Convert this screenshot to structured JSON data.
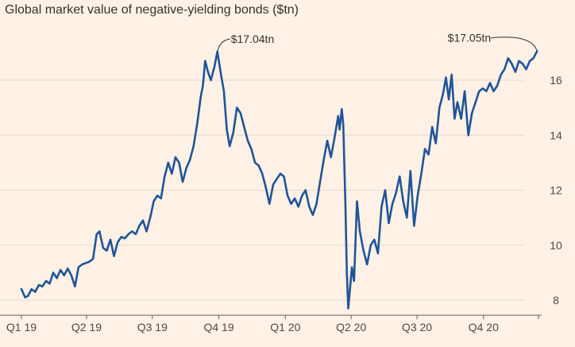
{
  "chart_data": {
    "type": "line",
    "title": "Global market value of negative-yielding bonds ($tn)",
    "xlabel": "",
    "ylabel": "",
    "x_range": [
      "2019-01-01",
      "2020-12-16"
    ],
    "ylim": [
      7.7,
      17.3
    ],
    "y_ticks": [
      8,
      10,
      12,
      14,
      16
    ],
    "y_tick_labels": [
      "8",
      "10",
      "12",
      "14",
      "16"
    ],
    "x_ticks": [
      {
        "date": "2019-01-01",
        "label": "Q1 19"
      },
      {
        "date": "2019-04-01",
        "label": "Q2 19"
      },
      {
        "date": "2019-07-01",
        "label": "Q3 19"
      },
      {
        "date": "2019-10-01",
        "label": "Q4 19"
      },
      {
        "date": "2020-01-01",
        "label": "Q1 20"
      },
      {
        "date": "2020-04-01",
        "label": "Q2 20"
      },
      {
        "date": "2020-07-01",
        "label": "Q3 20"
      },
      {
        "date": "2020-10-01",
        "label": "Q4 20"
      }
    ],
    "grid": true,
    "line_color": "#1f5499",
    "series": [
      {
        "values": [
          [
            "2019-01-01",
            8.4
          ],
          [
            "2019-01-06",
            8.1
          ],
          [
            "2019-01-10",
            8.15
          ],
          [
            "2019-01-15",
            8.4
          ],
          [
            "2019-01-20",
            8.3
          ],
          [
            "2019-01-25",
            8.55
          ],
          [
            "2019-01-30",
            8.5
          ],
          [
            "2019-02-04",
            8.7
          ],
          [
            "2019-02-09",
            8.6
          ],
          [
            "2019-02-14",
            9.0
          ],
          [
            "2019-02-19",
            8.8
          ],
          [
            "2019-02-24",
            9.1
          ],
          [
            "2019-03-01",
            8.9
          ],
          [
            "2019-03-06",
            9.15
          ],
          [
            "2019-03-11",
            8.9
          ],
          [
            "2019-03-16",
            8.5
          ],
          [
            "2019-03-21",
            9.2
          ],
          [
            "2019-03-26",
            9.3
          ],
          [
            "2019-03-31",
            9.35
          ],
          [
            "2019-04-05",
            9.4
          ],
          [
            "2019-04-10",
            9.5
          ],
          [
            "2019-04-15",
            10.4
          ],
          [
            "2019-04-19",
            10.5
          ],
          [
            "2019-04-24",
            9.9
          ],
          [
            "2019-04-29",
            9.8
          ],
          [
            "2019-05-04",
            10.2
          ],
          [
            "2019-05-09",
            9.6
          ],
          [
            "2019-05-14",
            10.1
          ],
          [
            "2019-05-19",
            10.3
          ],
          [
            "2019-05-24",
            10.25
          ],
          [
            "2019-05-29",
            10.4
          ],
          [
            "2019-06-03",
            10.5
          ],
          [
            "2019-06-08",
            10.4
          ],
          [
            "2019-06-13",
            10.7
          ],
          [
            "2019-06-18",
            10.9
          ],
          [
            "2019-06-23",
            10.5
          ],
          [
            "2019-06-28",
            11.0
          ],
          [
            "2019-07-03",
            11.6
          ],
          [
            "2019-07-08",
            11.8
          ],
          [
            "2019-07-13",
            11.7
          ],
          [
            "2019-07-18",
            12.5
          ],
          [
            "2019-07-23",
            13.0
          ],
          [
            "2019-07-28",
            12.6
          ],
          [
            "2019-08-02",
            13.2
          ],
          [
            "2019-08-07",
            13.0
          ],
          [
            "2019-08-12",
            12.3
          ],
          [
            "2019-08-17",
            12.8
          ],
          [
            "2019-08-22",
            13.1
          ],
          [
            "2019-08-27",
            13.6
          ],
          [
            "2019-09-01",
            14.4
          ],
          [
            "2019-09-06",
            15.4
          ],
          [
            "2019-09-09",
            15.8
          ],
          [
            "2019-09-12",
            16.7
          ],
          [
            "2019-09-16",
            16.3
          ],
          [
            "2019-09-20",
            16.0
          ],
          [
            "2019-09-25",
            16.5
          ],
          [
            "2019-09-29",
            17.04
          ],
          [
            "2019-10-04",
            16.2
          ],
          [
            "2019-10-08",
            15.6
          ],
          [
            "2019-10-12",
            14.2
          ],
          [
            "2019-10-16",
            13.6
          ],
          [
            "2019-10-21",
            14.1
          ],
          [
            "2019-10-26",
            15.0
          ],
          [
            "2019-10-31",
            14.8
          ],
          [
            "2019-11-05",
            14.3
          ],
          [
            "2019-11-10",
            13.8
          ],
          [
            "2019-11-15",
            13.5
          ],
          [
            "2019-11-20",
            13.0
          ],
          [
            "2019-11-25",
            12.9
          ],
          [
            "2019-11-30",
            12.6
          ],
          [
            "2019-12-05",
            12.1
          ],
          [
            "2019-12-10",
            11.5
          ],
          [
            "2019-12-15",
            12.2
          ],
          [
            "2019-12-20",
            12.4
          ],
          [
            "2019-12-25",
            12.6
          ],
          [
            "2019-12-30",
            12.5
          ],
          [
            "2020-01-04",
            11.8
          ],
          [
            "2020-01-09",
            11.5
          ],
          [
            "2020-01-14",
            11.7
          ],
          [
            "2020-01-19",
            11.4
          ],
          [
            "2020-01-24",
            11.8
          ],
          [
            "2020-01-29",
            12.0
          ],
          [
            "2020-02-03",
            11.4
          ],
          [
            "2020-02-08",
            11.1
          ],
          [
            "2020-02-13",
            11.5
          ],
          [
            "2020-02-18",
            12.3
          ],
          [
            "2020-02-23",
            13.1
          ],
          [
            "2020-02-28",
            13.8
          ],
          [
            "2020-03-04",
            13.2
          ],
          [
            "2020-03-09",
            13.9
          ],
          [
            "2020-03-14",
            14.7
          ],
          [
            "2020-03-16",
            14.2
          ],
          [
            "2020-03-19",
            14.95
          ],
          [
            "2020-03-21",
            14.4
          ],
          [
            "2020-03-24",
            11.5
          ],
          [
            "2020-03-26",
            9.0
          ],
          [
            "2020-03-28",
            7.7
          ],
          [
            "2020-04-02",
            9.2
          ],
          [
            "2020-04-05",
            8.7
          ],
          [
            "2020-04-09",
            11.6
          ],
          [
            "2020-04-13",
            10.5
          ],
          [
            "2020-04-18",
            9.8
          ],
          [
            "2020-04-23",
            9.3
          ],
          [
            "2020-04-28",
            10.0
          ],
          [
            "2020-05-03",
            10.2
          ],
          [
            "2020-05-08",
            9.7
          ],
          [
            "2020-05-13",
            11.4
          ],
          [
            "2020-05-18",
            12.0
          ],
          [
            "2020-05-23",
            10.8
          ],
          [
            "2020-05-28",
            11.5
          ],
          [
            "2020-06-02",
            11.9
          ],
          [
            "2020-06-07",
            12.5
          ],
          [
            "2020-06-12",
            11.6
          ],
          [
            "2020-06-17",
            11.0
          ],
          [
            "2020-06-22",
            12.7
          ],
          [
            "2020-06-27",
            10.7
          ],
          [
            "2020-07-02",
            11.8
          ],
          [
            "2020-07-07",
            12.6
          ],
          [
            "2020-07-12",
            13.5
          ],
          [
            "2020-07-17",
            13.3
          ],
          [
            "2020-07-22",
            14.3
          ],
          [
            "2020-07-27",
            13.7
          ],
          [
            "2020-08-01",
            15.0
          ],
          [
            "2020-08-06",
            15.5
          ],
          [
            "2020-08-10",
            16.1
          ],
          [
            "2020-08-14",
            15.3
          ],
          [
            "2020-08-18",
            16.2
          ],
          [
            "2020-08-22",
            14.6
          ],
          [
            "2020-08-26",
            15.2
          ],
          [
            "2020-08-31",
            14.6
          ],
          [
            "2020-09-05",
            15.6
          ],
          [
            "2020-09-10",
            14.0
          ],
          [
            "2020-09-15",
            14.8
          ],
          [
            "2020-09-20",
            15.2
          ],
          [
            "2020-09-25",
            15.6
          ],
          [
            "2020-09-30",
            15.7
          ],
          [
            "2020-10-05",
            15.6
          ],
          [
            "2020-10-10",
            15.9
          ],
          [
            "2020-10-15",
            15.6
          ],
          [
            "2020-10-20",
            15.8
          ],
          [
            "2020-10-25",
            16.2
          ],
          [
            "2020-10-30",
            16.4
          ],
          [
            "2020-11-04",
            16.8
          ],
          [
            "2020-11-09",
            16.6
          ],
          [
            "2020-11-14",
            16.3
          ],
          [
            "2020-11-19",
            16.7
          ],
          [
            "2020-11-24",
            16.6
          ],
          [
            "2020-11-29",
            16.4
          ],
          [
            "2020-12-04",
            16.7
          ],
          [
            "2020-12-09",
            16.8
          ],
          [
            "2020-12-14",
            17.05
          ]
        ]
      }
    ],
    "annotations": [
      {
        "label": "$17.04tn",
        "x": "2019-09-29",
        "y": 17.04
      },
      {
        "label": "$17.05tn",
        "x": "2020-12-14",
        "y": 17.05
      }
    ]
  }
}
